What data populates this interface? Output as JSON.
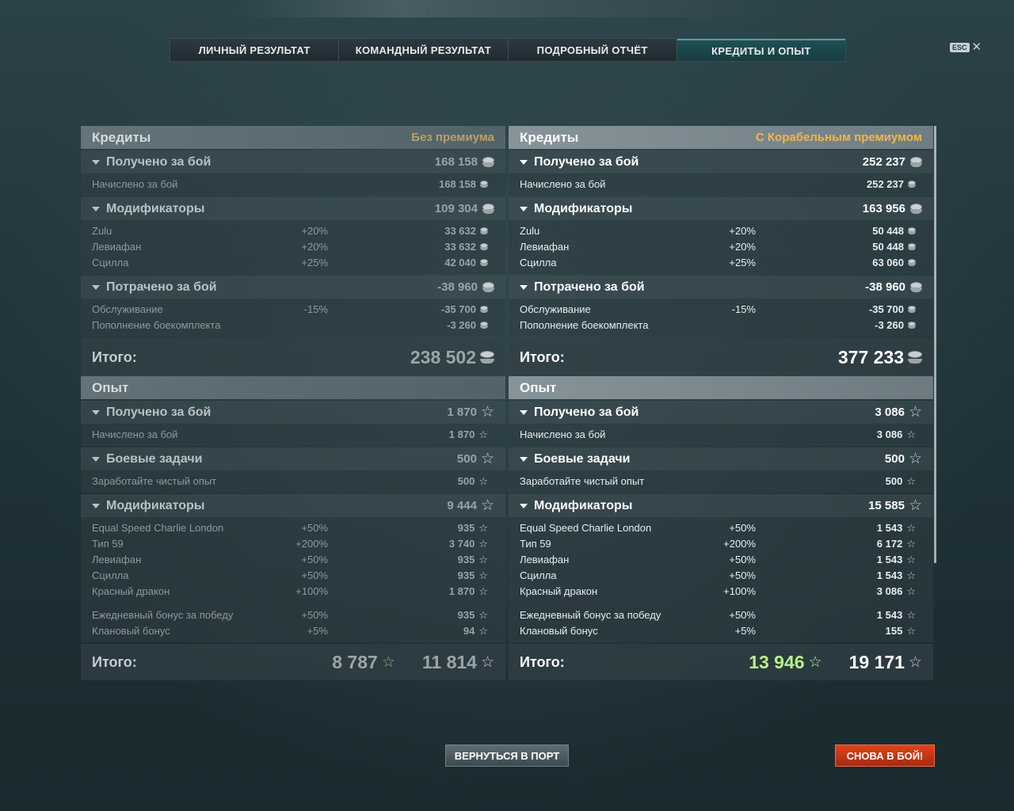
{
  "tabs": [
    {
      "label": "ЛИЧНЫЙ РЕЗУЛЬТАТ"
    },
    {
      "label": "КОМАНДНЫЙ РЕЗУЛЬТАТ"
    },
    {
      "label": "ПОДРОБНЫЙ ОТЧЁТ"
    },
    {
      "label": "КРЕДИТЫ И ОПЫТ",
      "active": true
    }
  ],
  "close": {
    "esc_label": "ESC",
    "icon": "close-icon"
  },
  "left": {
    "credits": {
      "title": "Кредиты",
      "premium_label": "Без премиума",
      "earned": {
        "title": "Получено за бой",
        "value": "168 158",
        "rows": [
          {
            "label": "Начислено за бой",
            "pct": "",
            "value": "168 158"
          }
        ]
      },
      "modifiers": {
        "title": "Модификаторы",
        "value": "109 304",
        "rows": [
          {
            "label": "Zulu",
            "pct": "+20%",
            "value": "33 632"
          },
          {
            "label": "Левиафан",
            "pct": "+20%",
            "value": "33 632"
          },
          {
            "label": "Сцилла",
            "pct": "+25%",
            "value": "42 040"
          }
        ]
      },
      "spent": {
        "title": "Потрачено за бой",
        "value": "-38 960",
        "rows": [
          {
            "label": "Обслуживание",
            "pct": "-15%",
            "value": "-35 700"
          },
          {
            "label": "Пополнение боекомплекта",
            "pct": "",
            "value": "-3 260"
          }
        ]
      },
      "total_label": "Итого:",
      "total_value": "238 502"
    },
    "xp": {
      "title": "Опыт",
      "earned": {
        "title": "Получено за бой",
        "value": "1 870",
        "rows": [
          {
            "label": "Начислено за бой",
            "pct": "",
            "value": "1 870"
          }
        ]
      },
      "tasks": {
        "title": "Боевые задачи",
        "value": "500",
        "rows": [
          {
            "label": "Заработайте чистый опыт",
            "pct": "",
            "value": "500"
          }
        ]
      },
      "modifiers": {
        "title": "Модификаторы",
        "value": "9 444",
        "rows": [
          {
            "label": "Equal Speed Charlie London",
            "pct": "+50%",
            "value": "935"
          },
          {
            "label": "Тип 59",
            "pct": "+200%",
            "value": "3 740"
          },
          {
            "label": "Левиафан",
            "pct": "+50%",
            "value": "935"
          },
          {
            "label": "Сцилла",
            "pct": "+50%",
            "value": "935"
          },
          {
            "label": "Красный дракон",
            "pct": "+100%",
            "value": "1 870"
          }
        ],
        "bonus_rows": [
          {
            "label": "Ежедневный бонус за победу",
            "pct": "+50%",
            "value": "935"
          },
          {
            "label": "Клановый бонус",
            "pct": "+5%",
            "value": "94"
          }
        ]
      },
      "total_label": "Итого:",
      "total_free": "8 787",
      "total_value": "11 814"
    }
  },
  "right": {
    "credits": {
      "title": "Кредиты",
      "premium_label": "С Корабельным премиумом",
      "earned": {
        "title": "Получено за бой",
        "value": "252 237",
        "rows": [
          {
            "label": "Начислено за бой",
            "pct": "",
            "value": "252 237"
          }
        ]
      },
      "modifiers": {
        "title": "Модификаторы",
        "value": "163 956",
        "rows": [
          {
            "label": "Zulu",
            "pct": "+20%",
            "value": "50 448"
          },
          {
            "label": "Левиафан",
            "pct": "+20%",
            "value": "50 448"
          },
          {
            "label": "Сцилла",
            "pct": "+25%",
            "value": "63 060"
          }
        ]
      },
      "spent": {
        "title": "Потрачено за бой",
        "value": "-38 960",
        "rows": [
          {
            "label": "Обслуживание",
            "pct": "-15%",
            "value": "-35 700"
          },
          {
            "label": "Пополнение боекомплекта",
            "pct": "",
            "value": "-3 260"
          }
        ]
      },
      "total_label": "Итого:",
      "total_value": "377 233"
    },
    "xp": {
      "title": "Опыт",
      "earned": {
        "title": "Получено за бой",
        "value": "3 086",
        "rows": [
          {
            "label": "Начислено за бой",
            "pct": "",
            "value": "3 086"
          }
        ]
      },
      "tasks": {
        "title": "Боевые задачи",
        "value": "500",
        "rows": [
          {
            "label": "Заработайте чистый опыт",
            "pct": "",
            "value": "500"
          }
        ]
      },
      "modifiers": {
        "title": "Модификаторы",
        "value": "15 585",
        "rows": [
          {
            "label": "Equal Speed Charlie London",
            "pct": "+50%",
            "value": "1 543"
          },
          {
            "label": "Тип 59",
            "pct": "+200%",
            "value": "6 172"
          },
          {
            "label": "Левиафан",
            "pct": "+50%",
            "value": "1 543"
          },
          {
            "label": "Сцилла",
            "pct": "+50%",
            "value": "1 543"
          },
          {
            "label": "Красный дракон",
            "pct": "+100%",
            "value": "3 086"
          }
        ],
        "bonus_rows": [
          {
            "label": "Ежедневный бонус за победу",
            "pct": "+50%",
            "value": "1 543"
          },
          {
            "label": "Клановый бонус",
            "pct": "+5%",
            "value": "155"
          }
        ]
      },
      "total_label": "Итого:",
      "total_free": "13 946",
      "total_value": "19 171"
    }
  },
  "buttons": {
    "return_label": "ВЕРНУТЬСЯ В ПОРТ",
    "battle_label": "СНОВА В БОЙ!"
  },
  "colors": {
    "accent_tab": "#1f5053",
    "premium_gold": "#f4b44a",
    "battle_button": "#d63a18",
    "free_xp_green": "#b9f08a"
  },
  "icons": {
    "credit": "coin-icon",
    "xp": "star-icon",
    "expand": "triangle-down-icon"
  }
}
